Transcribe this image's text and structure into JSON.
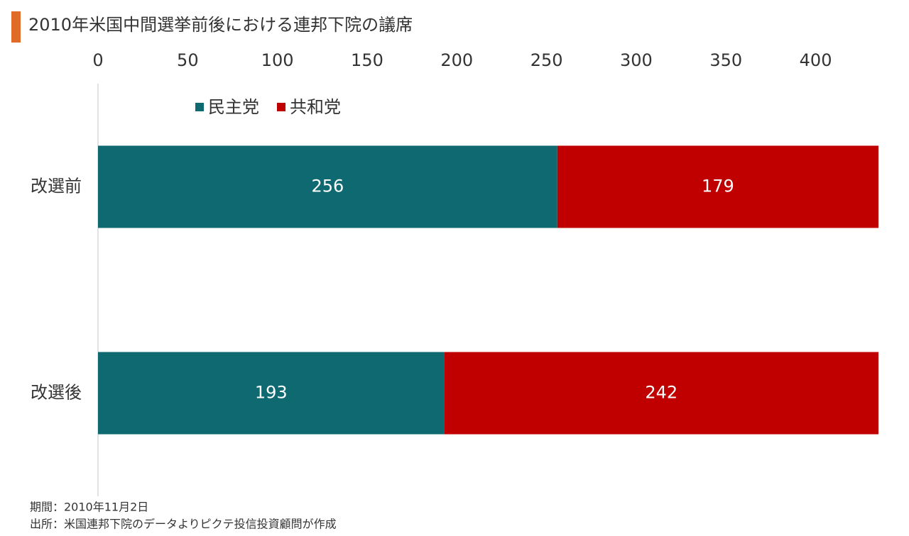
{
  "chart_data": {
    "type": "bar",
    "orientation": "horizontal",
    "stacked": true,
    "title": "2010年米国中間選挙前後における連邦下院の議席",
    "categories": [
      "改選前",
      "改選後"
    ],
    "series": [
      {
        "name": "民主党",
        "color": "#0e6a70",
        "values": [
          256,
          193
        ]
      },
      {
        "name": "共和党",
        "color": "#c00000",
        "values": [
          179,
          242
        ]
      }
    ],
    "xlim": [
      0,
      435
    ],
    "xticks": [
      0,
      50,
      100,
      150,
      200,
      250,
      300,
      350,
      400
    ],
    "notes": [
      "期間：2010年11月2日",
      "出所：米国連邦下院のデータよりピクテ投信投資顧問が作成"
    ]
  }
}
